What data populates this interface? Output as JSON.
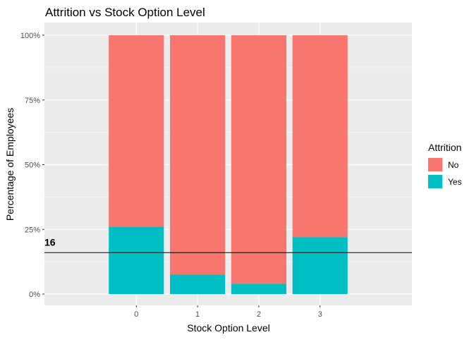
{
  "chart_data": {
    "type": "bar",
    "stacked": true,
    "title": "Attrition vs Stock Option Level",
    "xlabel": "Stock Option Level",
    "ylabel": "Percentage of Employees",
    "categories": [
      "0",
      "1",
      "2",
      "3"
    ],
    "series": [
      {
        "name": "No",
        "color": "#F8766D",
        "values": [
          74,
          92.5,
          96,
          78
        ]
      },
      {
        "name": "Yes",
        "color": "#00BFC4",
        "values": [
          26,
          7.5,
          4,
          22
        ]
      }
    ],
    "ylim": [
      0,
      100
    ],
    "yticks": [
      {
        "value": 0,
        "label": "0%"
      },
      {
        "value": 25,
        "label": "25%"
      },
      {
        "value": 50,
        "label": "50%"
      },
      {
        "value": 75,
        "label": "75%"
      },
      {
        "value": 100,
        "label": "100%"
      }
    ],
    "reference_line": {
      "value": 16,
      "label": "16",
      "color": "#000000"
    },
    "legend": {
      "title": "Attrition",
      "position": "right",
      "entries": [
        "No",
        "Yes"
      ]
    },
    "grid": true,
    "panel_background": "#EBEBEB"
  }
}
